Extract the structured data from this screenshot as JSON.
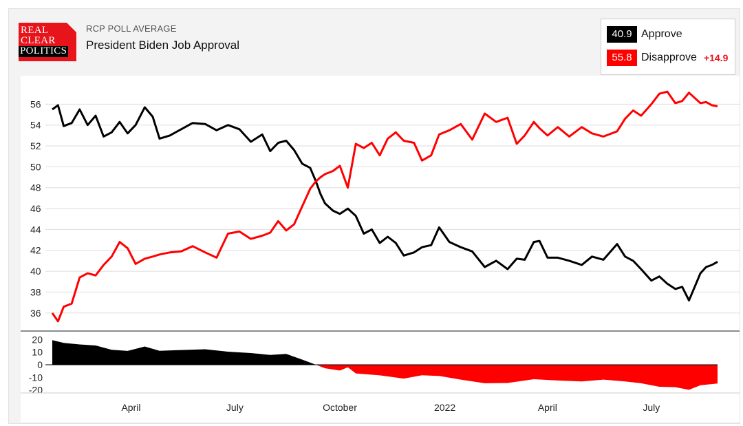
{
  "header": {
    "logo_lines": [
      "REAL",
      "CLEAR",
      "POLITICS"
    ],
    "subtitle": "RCP POLL AVERAGE",
    "title": "President Biden Job Approval"
  },
  "legend": {
    "approve": {
      "value": "40.9",
      "label": "Approve",
      "color": "#000000"
    },
    "disapprove": {
      "value": "55.8",
      "label": "Disapprove",
      "color": "#ff0000",
      "spread": "+14.9"
    }
  },
  "chart_data": [
    {
      "type": "line",
      "title": "President Biden Job Approval",
      "x_range": [
        "2021-01-22",
        "2022-08-28"
      ],
      "x_ticks": [
        {
          "label": "April",
          "date": "2021-04-01"
        },
        {
          "label": "July",
          "date": "2021-07-01"
        },
        {
          "label": "October",
          "date": "2021-10-01"
        },
        {
          "label": "2022",
          "date": "2022-01-01"
        },
        {
          "label": "April",
          "date": "2022-04-01"
        },
        {
          "label": "July",
          "date": "2022-07-01"
        }
      ],
      "y_ticks": [
        36,
        38,
        40,
        42,
        44,
        46,
        48,
        50,
        52,
        54,
        56
      ],
      "ylim": [
        34.6,
        58.2
      ],
      "grid": true,
      "series": [
        {
          "name": "Approve",
          "color": "#000000",
          "points": [
            [
              "2021-01-22",
              55.5
            ],
            [
              "2021-01-27",
              55.9
            ],
            [
              "2021-02-01",
              53.9
            ],
            [
              "2021-02-08",
              54.2
            ],
            [
              "2021-02-15",
              55.5
            ],
            [
              "2021-02-22",
              54.0
            ],
            [
              "2021-03-01",
              54.9
            ],
            [
              "2021-03-08",
              52.9
            ],
            [
              "2021-03-15",
              53.3
            ],
            [
              "2021-03-22",
              54.3
            ],
            [
              "2021-03-29",
              53.2
            ],
            [
              "2021-04-05",
              54.0
            ],
            [
              "2021-04-13",
              55.7
            ],
            [
              "2021-04-20",
              54.8
            ],
            [
              "2021-04-26",
              52.7
            ],
            [
              "2021-05-05",
              53.0
            ],
            [
              "2021-05-15",
              53.6
            ],
            [
              "2021-05-25",
              54.2
            ],
            [
              "2021-06-05",
              54.1
            ],
            [
              "2021-06-15",
              53.5
            ],
            [
              "2021-06-25",
              54.0
            ],
            [
              "2021-07-05",
              53.6
            ],
            [
              "2021-07-15",
              52.4
            ],
            [
              "2021-07-25",
              53.1
            ],
            [
              "2021-08-01",
              51.5
            ],
            [
              "2021-08-08",
              52.3
            ],
            [
              "2021-08-15",
              52.5
            ],
            [
              "2021-08-22",
              51.6
            ],
            [
              "2021-08-29",
              50.3
            ],
            [
              "2021-09-05",
              49.9
            ],
            [
              "2021-09-10",
              48.6
            ],
            [
              "2021-09-14",
              47.4
            ],
            [
              "2021-09-18",
              46.5
            ],
            [
              "2021-09-25",
              45.8
            ],
            [
              "2021-10-01",
              45.5
            ],
            [
              "2021-10-08",
              46.0
            ],
            [
              "2021-10-15",
              45.3
            ],
            [
              "2021-10-22",
              43.6
            ],
            [
              "2021-10-29",
              44.0
            ],
            [
              "2021-11-05",
              42.7
            ],
            [
              "2021-11-12",
              43.3
            ],
            [
              "2021-11-19",
              42.7
            ],
            [
              "2021-11-26",
              41.5
            ],
            [
              "2021-12-05",
              41.8
            ],
            [
              "2021-12-12",
              42.3
            ],
            [
              "2021-12-20",
              42.5
            ],
            [
              "2021-12-27",
              44.2
            ],
            [
              "2022-01-05",
              42.8
            ],
            [
              "2022-01-15",
              42.3
            ],
            [
              "2022-01-25",
              41.9
            ],
            [
              "2022-02-05",
              40.4
            ],
            [
              "2022-02-15",
              41.0
            ],
            [
              "2022-02-25",
              40.2
            ],
            [
              "2022-03-05",
              41.2
            ],
            [
              "2022-03-12",
              41.1
            ],
            [
              "2022-03-20",
              42.8
            ],
            [
              "2022-03-25",
              42.9
            ],
            [
              "2022-04-01",
              41.3
            ],
            [
              "2022-04-10",
              41.3
            ],
            [
              "2022-04-20",
              41.0
            ],
            [
              "2022-05-01",
              40.6
            ],
            [
              "2022-05-10",
              41.4
            ],
            [
              "2022-05-20",
              41.1
            ],
            [
              "2022-06-01",
              42.6
            ],
            [
              "2022-06-08",
              41.4
            ],
            [
              "2022-06-15",
              41.0
            ],
            [
              "2022-06-22",
              40.2
            ],
            [
              "2022-07-01",
              39.1
            ],
            [
              "2022-07-08",
              39.5
            ],
            [
              "2022-07-15",
              38.8
            ],
            [
              "2022-07-22",
              38.3
            ],
            [
              "2022-07-28",
              38.5
            ],
            [
              "2022-08-03",
              37.2
            ],
            [
              "2022-08-08",
              38.5
            ],
            [
              "2022-08-13",
              39.8
            ],
            [
              "2022-08-18",
              40.4
            ],
            [
              "2022-08-23",
              40.6
            ],
            [
              "2022-08-28",
              40.9
            ]
          ]
        },
        {
          "name": "Disapprove",
          "color": "#ff0000",
          "points": [
            [
              "2021-01-22",
              36.0
            ],
            [
              "2021-01-27",
              35.2
            ],
            [
              "2021-02-01",
              36.6
            ],
            [
              "2021-02-08",
              36.9
            ],
            [
              "2021-02-15",
              39.4
            ],
            [
              "2021-02-22",
              39.8
            ],
            [
              "2021-03-01",
              39.6
            ],
            [
              "2021-03-08",
              40.6
            ],
            [
              "2021-03-15",
              41.4
            ],
            [
              "2021-03-22",
              42.8
            ],
            [
              "2021-03-29",
              42.2
            ],
            [
              "2021-04-05",
              40.7
            ],
            [
              "2021-04-13",
              41.2
            ],
            [
              "2021-04-20",
              41.4
            ],
            [
              "2021-04-26",
              41.6
            ],
            [
              "2021-05-05",
              41.8
            ],
            [
              "2021-05-15",
              41.9
            ],
            [
              "2021-05-25",
              42.4
            ],
            [
              "2021-06-05",
              41.8
            ],
            [
              "2021-06-15",
              41.3
            ],
            [
              "2021-06-25",
              43.6
            ],
            [
              "2021-07-05",
              43.8
            ],
            [
              "2021-07-15",
              43.1
            ],
            [
              "2021-07-25",
              43.4
            ],
            [
              "2021-08-01",
              43.7
            ],
            [
              "2021-08-08",
              44.8
            ],
            [
              "2021-08-15",
              43.9
            ],
            [
              "2021-08-22",
              44.5
            ],
            [
              "2021-08-29",
              46.2
            ],
            [
              "2021-09-05",
              47.9
            ],
            [
              "2021-09-10",
              48.6
            ],
            [
              "2021-09-14",
              49.0
            ],
            [
              "2021-09-18",
              49.3
            ],
            [
              "2021-09-25",
              49.6
            ],
            [
              "2021-10-01",
              50.1
            ],
            [
              "2021-10-08",
              48.0
            ],
            [
              "2021-10-15",
              52.2
            ],
            [
              "2021-10-22",
              51.8
            ],
            [
              "2021-10-29",
              52.3
            ],
            [
              "2021-11-05",
              51.1
            ],
            [
              "2021-11-12",
              52.7
            ],
            [
              "2021-11-19",
              53.3
            ],
            [
              "2021-11-26",
              52.5
            ],
            [
              "2021-12-05",
              52.3
            ],
            [
              "2021-12-12",
              50.6
            ],
            [
              "2021-12-20",
              51.1
            ],
            [
              "2021-12-27",
              53.1
            ],
            [
              "2022-01-05",
              53.5
            ],
            [
              "2022-01-15",
              54.1
            ],
            [
              "2022-01-25",
              52.6
            ],
            [
              "2022-02-05",
              55.1
            ],
            [
              "2022-02-15",
              54.3
            ],
            [
              "2022-02-25",
              54.7
            ],
            [
              "2022-03-05",
              52.2
            ],
            [
              "2022-03-12",
              53.0
            ],
            [
              "2022-03-20",
              54.3
            ],
            [
              "2022-03-25",
              53.7
            ],
            [
              "2022-04-01",
              53.0
            ],
            [
              "2022-04-10",
              53.8
            ],
            [
              "2022-04-20",
              52.9
            ],
            [
              "2022-05-01",
              53.8
            ],
            [
              "2022-05-10",
              53.2
            ],
            [
              "2022-05-20",
              52.9
            ],
            [
              "2022-06-01",
              53.4
            ],
            [
              "2022-06-08",
              54.6
            ],
            [
              "2022-06-15",
              55.4
            ],
            [
              "2022-06-22",
              54.9
            ],
            [
              "2022-07-01",
              56.0
            ],
            [
              "2022-07-08",
              57.0
            ],
            [
              "2022-07-15",
              57.2
            ],
            [
              "2022-07-22",
              56.1
            ],
            [
              "2022-07-28",
              56.3
            ],
            [
              "2022-08-03",
              57.1
            ],
            [
              "2022-08-08",
              56.6
            ],
            [
              "2022-08-13",
              56.1
            ],
            [
              "2022-08-18",
              56.2
            ],
            [
              "2022-08-23",
              55.9
            ],
            [
              "2022-08-28",
              55.8
            ]
          ]
        }
      ]
    },
    {
      "type": "area",
      "title": "",
      "x_range": [
        "2021-01-22",
        "2022-08-28"
      ],
      "y_ticks": [
        20,
        10,
        0,
        -10,
        -20
      ],
      "ylim": [
        -23.5,
        23.5
      ],
      "positive_color": "#000000",
      "negative_color": "#ff0000",
      "series": [
        {
          "name": "",
          "points": [
            [
              "2021-01-22",
              19.5
            ],
            [
              "2021-02-01",
              17.3
            ],
            [
              "2021-02-15",
              16.1
            ],
            [
              "2021-03-01",
              15.3
            ],
            [
              "2021-03-15",
              11.9
            ],
            [
              "2021-03-29",
              11.0
            ],
            [
              "2021-04-13",
              14.5
            ],
            [
              "2021-04-26",
              11.1
            ],
            [
              "2021-05-15",
              11.7
            ],
            [
              "2021-06-05",
              12.3
            ],
            [
              "2021-06-25",
              10.4
            ],
            [
              "2021-07-15",
              9.3
            ],
            [
              "2021-08-01",
              7.8
            ],
            [
              "2021-08-15",
              8.6
            ],
            [
              "2021-08-29",
              4.1
            ],
            [
              "2021-09-10",
              0.0
            ],
            [
              "2021-09-18",
              -2.8
            ],
            [
              "2021-10-01",
              -4.6
            ],
            [
              "2021-10-08",
              -2.0
            ],
            [
              "2021-10-15",
              -6.9
            ],
            [
              "2021-11-05",
              -8.4
            ],
            [
              "2021-11-26",
              -11.0
            ],
            [
              "2021-12-12",
              -8.3
            ],
            [
              "2021-12-27",
              -8.9
            ],
            [
              "2022-01-15",
              -11.8
            ],
            [
              "2022-02-05",
              -14.7
            ],
            [
              "2022-02-25",
              -14.5
            ],
            [
              "2022-03-20",
              -11.5
            ],
            [
              "2022-04-10",
              -12.5
            ],
            [
              "2022-05-01",
              -13.2
            ],
            [
              "2022-05-20",
              -11.8
            ],
            [
              "2022-06-08",
              -13.2
            ],
            [
              "2022-06-22",
              -14.7
            ],
            [
              "2022-07-08",
              -17.5
            ],
            [
              "2022-07-22",
              -17.8
            ],
            [
              "2022-08-03",
              -19.9
            ],
            [
              "2022-08-13",
              -16.3
            ],
            [
              "2022-08-28",
              -14.9
            ]
          ]
        }
      ]
    }
  ]
}
